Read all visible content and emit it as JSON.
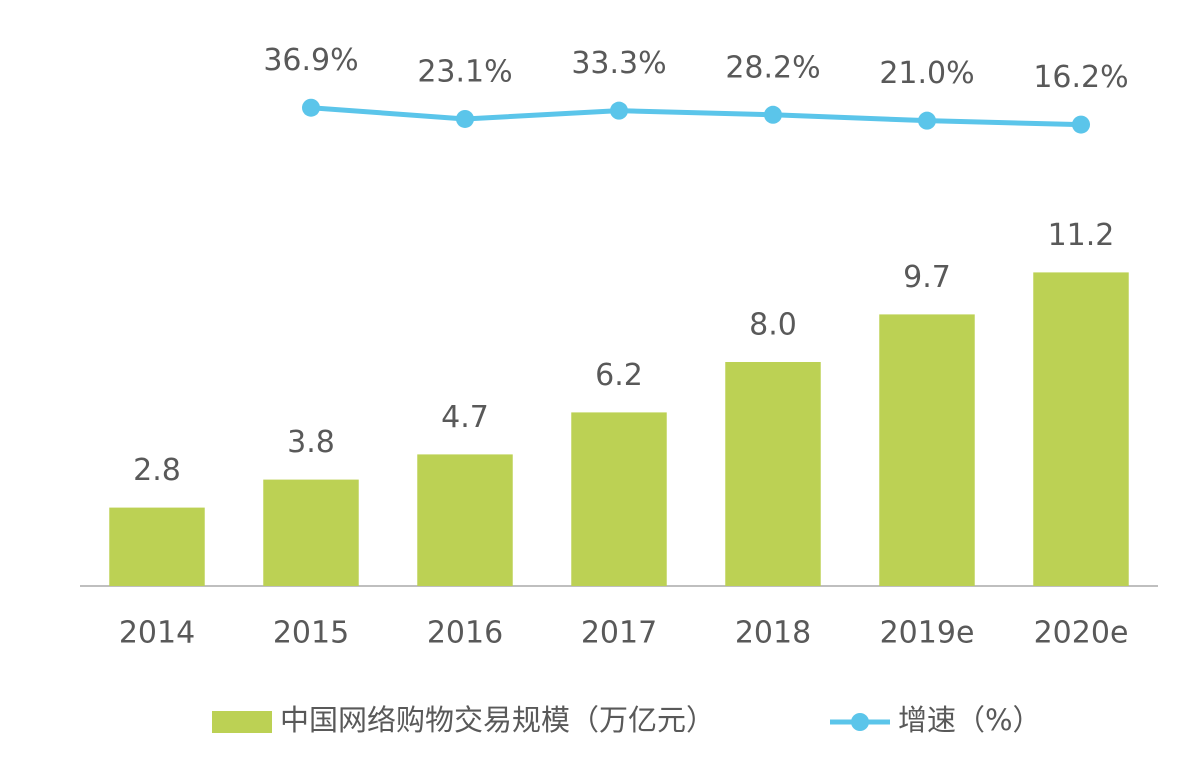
{
  "chart_data": {
    "type": "bar-line",
    "categories": [
      "2014",
      "2015",
      "2016",
      "2017",
      "2018",
      "2019e",
      "2020e"
    ],
    "series": [
      {
        "name": "中国网络购物交易规模（万亿元）",
        "type": "bar",
        "color": "#bcd154",
        "values": [
          2.8,
          3.8,
          4.7,
          6.2,
          8.0,
          9.7,
          11.2
        ],
        "value_labels": [
          "2.8",
          "3.8",
          "4.7",
          "6.2",
          "8.0",
          "9.7",
          "11.2"
        ]
      },
      {
        "name": "增速（%）",
        "type": "line",
        "axis": "y2",
        "color": "#5bc5ea",
        "values": [
          null,
          36.9,
          23.1,
          33.3,
          28.2,
          21.0,
          16.2
        ],
        "value_labels": [
          null,
          "36.9%",
          "23.1%",
          "33.3%",
          "28.2%",
          "21.0%",
          "16.2%"
        ]
      }
    ],
    "ylim": [
      0,
      19.5
    ],
    "y2lim": [
      -550,
      120
    ],
    "grid": false,
    "legend": "bottom"
  }
}
